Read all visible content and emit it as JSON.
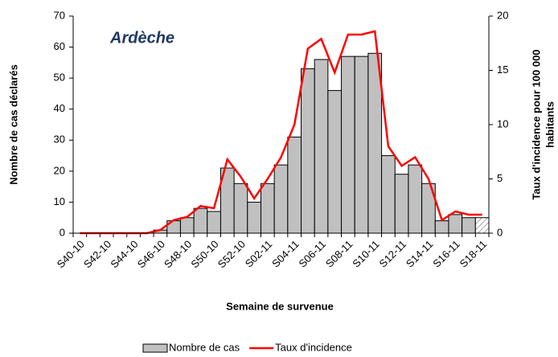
{
  "chart_data": {
    "type": "bar-line",
    "annotation": "Ardèche",
    "x_label": "Semaine de survenue",
    "y_label": "Nombre de cas déclarés",
    "y2_label": [
      "Taux d'incidence pour 100 000",
      "habitants"
    ],
    "categories": [
      "S40-10",
      null,
      "S42-10",
      null,
      "S44-10",
      null,
      "S46-10",
      null,
      "S48-10",
      null,
      "S50-10",
      null,
      "S52-10",
      null,
      "S02-11",
      null,
      "S04-11",
      null,
      "S06-11",
      null,
      "S08-11",
      null,
      "S10-11",
      null,
      "S12-11",
      null,
      "S14-11",
      null,
      "S16-11",
      null,
      "S18-11"
    ],
    "series": [
      {
        "name": "Nombre de cas",
        "type": "bar",
        "color": "#c0c0c0",
        "hatch_last": true,
        "values": [
          0,
          0,
          0,
          0,
          0,
          0,
          1,
          4,
          5,
          8,
          7,
          21,
          16,
          10,
          16,
          22,
          31,
          53,
          56,
          46,
          57,
          57,
          58,
          25,
          19,
          22,
          16,
          4,
          6,
          5,
          5
        ]
      },
      {
        "name": "Taux d'incidence",
        "type": "line",
        "axis": "y2",
        "color": "#ff0000",
        "values": [
          0,
          0,
          0,
          0,
          0,
          0,
          0.3,
          1.2,
          1.5,
          2.5,
          2.3,
          6.8,
          5.2,
          3.2,
          5,
          7,
          10,
          17,
          17.9,
          14.8,
          18.3,
          18.3,
          18.6,
          8,
          6.2,
          7,
          5,
          1.2,
          2,
          1.7,
          1.7
        ]
      }
    ],
    "ylim": [
      0,
      70
    ],
    "yticks": [
      0,
      10,
      20,
      30,
      40,
      50,
      60,
      70
    ],
    "y2lim": [
      0,
      20
    ],
    "y2ticks": [
      0,
      5,
      10,
      15,
      20
    ],
    "legend": "bottom"
  }
}
